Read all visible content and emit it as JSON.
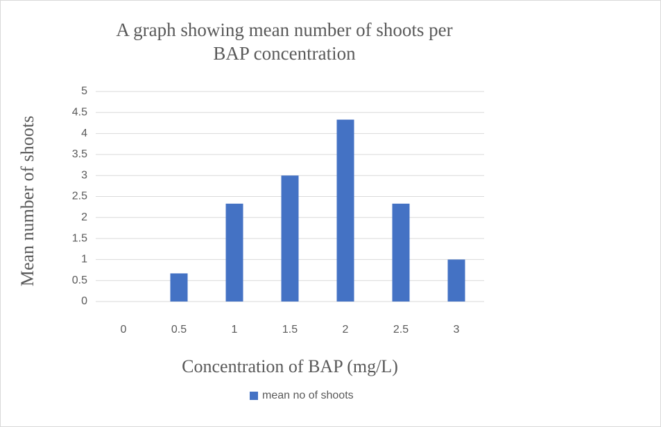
{
  "chart_data": {
    "type": "bar",
    "title": "A graph showing mean number of shoots per BAP concentration",
    "x_label": "Concentration of BAP (mg/L)",
    "y_label": "Mean number of shoots",
    "categories": [
      "0",
      "0.5",
      "1",
      "1.5",
      "2",
      "2.5",
      "3"
    ],
    "series": [
      {
        "name": "mean no of shoots",
        "color": "#4472c4",
        "values": [
          0,
          0.67,
          2.33,
          3,
          4.33,
          2.33,
          1
        ]
      }
    ],
    "ylim": [
      0,
      5
    ],
    "yticks": [
      0,
      0.5,
      1,
      1.5,
      2,
      2.5,
      3,
      3.5,
      4,
      4.5,
      5
    ],
    "grid": true,
    "legend": "bottom"
  }
}
